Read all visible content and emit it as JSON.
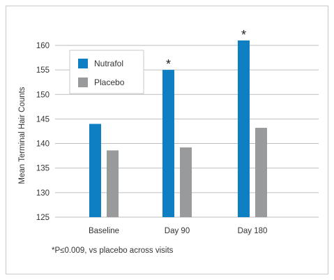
{
  "chart_data": {
    "type": "bar",
    "ylabel": "Mean Terminal Hair Counts",
    "xlabel": "",
    "ylim": [
      125,
      162
    ],
    "yticks": [
      125,
      130,
      135,
      140,
      145,
      150,
      155,
      160
    ],
    "grid": true,
    "legend_position": "top-left",
    "categories": [
      "Baseline",
      "Day  90",
      "Day  180"
    ],
    "series": [
      {
        "name": "Nutrafol",
        "color": "#0f7fc4",
        "values": [
          144,
          155,
          161
        ]
      },
      {
        "name": "Placebo",
        "color": "#999a9b",
        "values": [
          138.6,
          139.2,
          143.2
        ]
      }
    ],
    "annotations": [
      {
        "category": 1,
        "series": 0,
        "text": "*"
      },
      {
        "category": 2,
        "series": 0,
        "text": "*"
      }
    ],
    "footnote": "*P≤0.009, vs placebo across visits"
  }
}
